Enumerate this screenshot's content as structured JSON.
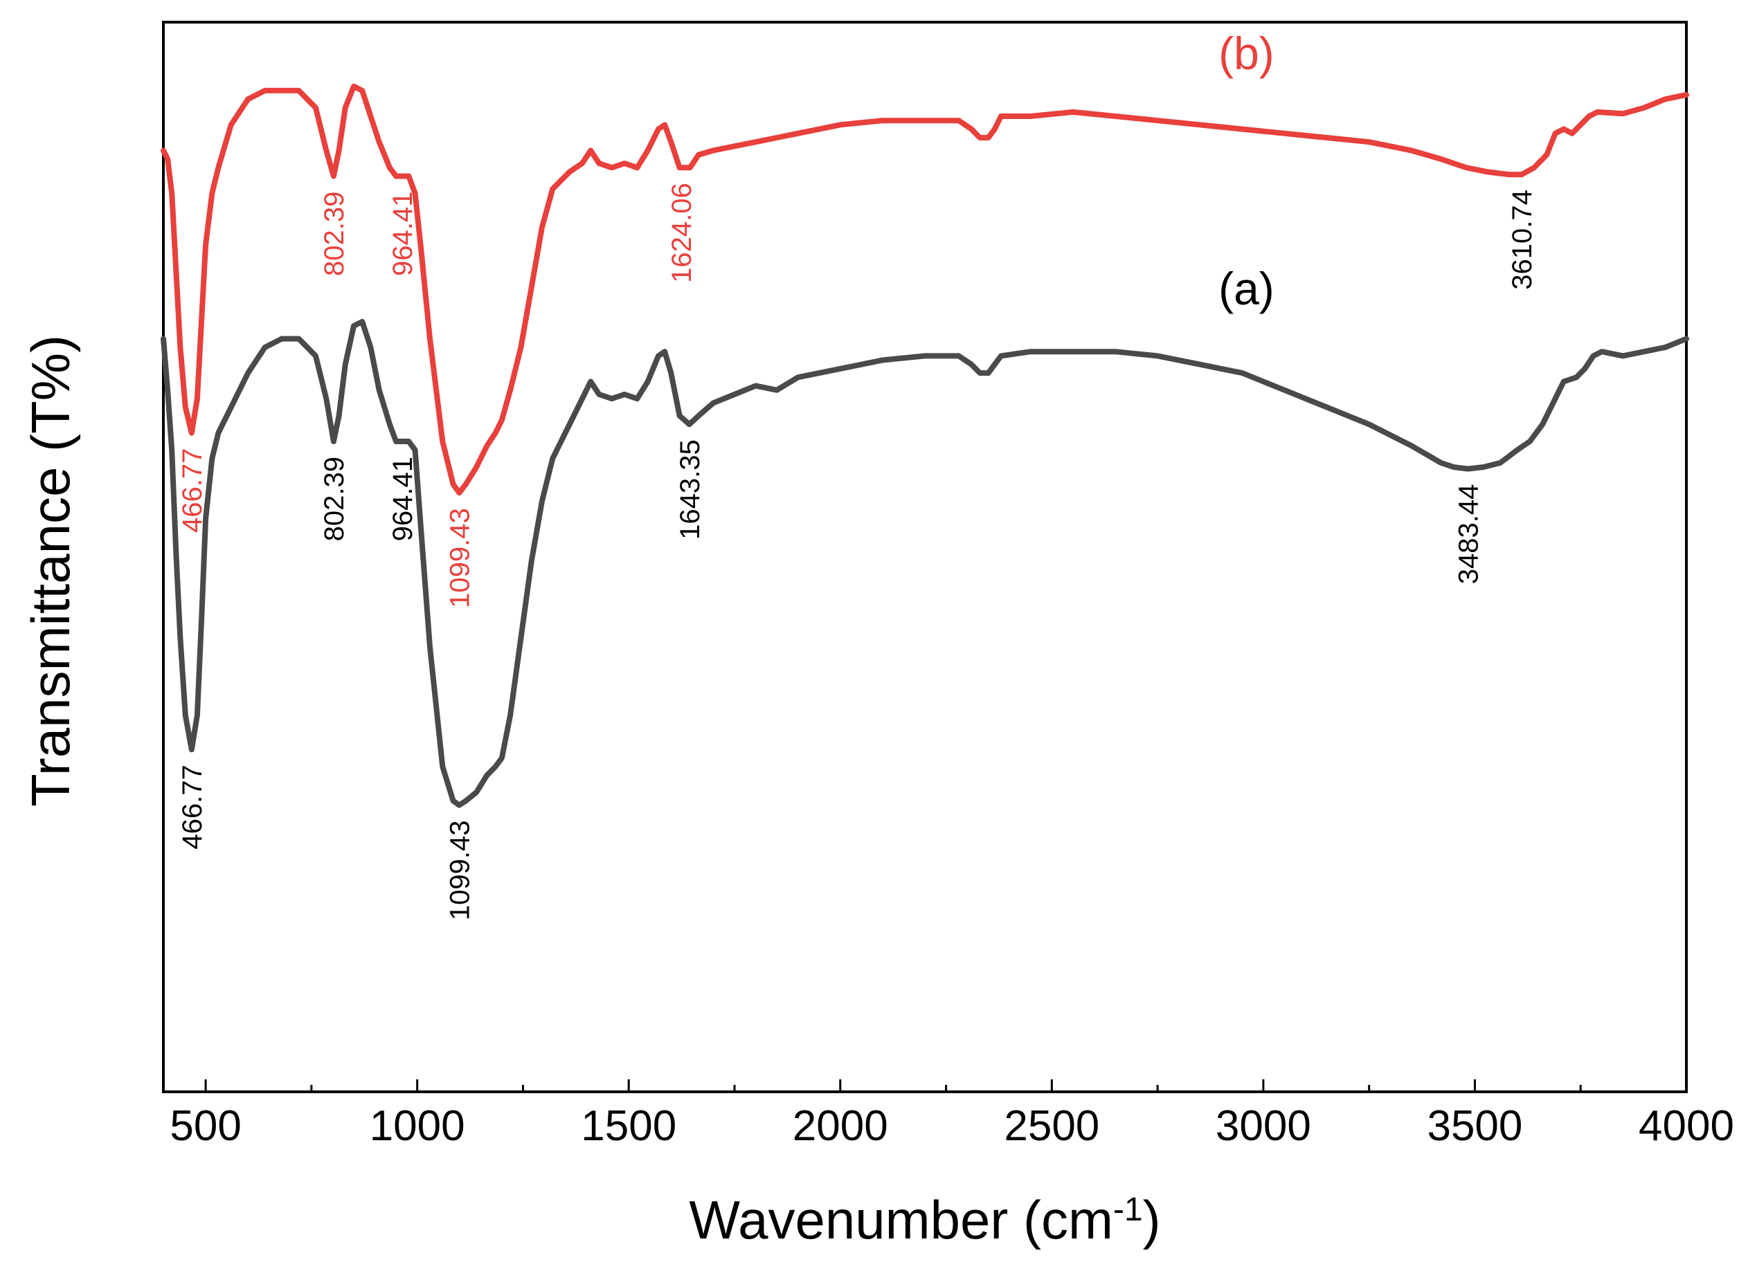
{
  "chart_data": {
    "type": "line",
    "title": "",
    "xlabel": "Wavenumber (cm",
    "xlabel_superscript": "-1",
    "xlabel_close": ")",
    "ylabel": "Transmittance (T%)",
    "xlim": [
      400,
      4000
    ],
    "ylim": [
      -20,
      105
    ],
    "grid": false,
    "y_ticks_labeled": false,
    "x_ticks": [
      500,
      1000,
      1500,
      2000,
      2500,
      3000,
      3500,
      4000
    ],
    "x_tick_labels": [
      "500",
      "1000",
      "1500",
      "2000",
      "2500",
      "3000",
      "3500",
      "4000"
    ],
    "series": [
      {
        "name": "(a)",
        "color": "#4a4a4a",
        "points": [
          [
            400,
            68
          ],
          [
            410,
            62
          ],
          [
            420,
            55
          ],
          [
            430,
            43
          ],
          [
            440,
            33
          ],
          [
            452,
            24
          ],
          [
            466.77,
            20
          ],
          [
            480,
            24
          ],
          [
            490,
            35
          ],
          [
            500,
            47
          ],
          [
            515,
            54
          ],
          [
            530,
            57
          ],
          [
            560,
            60
          ],
          [
            600,
            64
          ],
          [
            640,
            67
          ],
          [
            680,
            68
          ],
          [
            720,
            68
          ],
          [
            760,
            66
          ],
          [
            785,
            61
          ],
          [
            802.39,
            56
          ],
          [
            815,
            59
          ],
          [
            830,
            65
          ],
          [
            850,
            69.5
          ],
          [
            870,
            70
          ],
          [
            890,
            67
          ],
          [
            910,
            62
          ],
          [
            935,
            58
          ],
          [
            950,
            56
          ],
          [
            964.41,
            56
          ],
          [
            980,
            56
          ],
          [
            995,
            55
          ],
          [
            1010,
            45
          ],
          [
            1030,
            32
          ],
          [
            1060,
            18
          ],
          [
            1085,
            14
          ],
          [
            1099.43,
            13.5
          ],
          [
            1115,
            14
          ],
          [
            1140,
            15
          ],
          [
            1165,
            17
          ],
          [
            1185,
            18
          ],
          [
            1200,
            19
          ],
          [
            1220,
            24
          ],
          [
            1245,
            33
          ],
          [
            1270,
            42
          ],
          [
            1295,
            49
          ],
          [
            1320,
            54
          ],
          [
            1360,
            58
          ],
          [
            1390,
            61
          ],
          [
            1410,
            63
          ],
          [
            1430,
            61.5
          ],
          [
            1460,
            61
          ],
          [
            1490,
            61.5
          ],
          [
            1520,
            61
          ],
          [
            1545,
            63
          ],
          [
            1570,
            66
          ],
          [
            1585,
            66.5
          ],
          [
            1600,
            64
          ],
          [
            1620,
            59
          ],
          [
            1643.35,
            58
          ],
          [
            1665,
            59
          ],
          [
            1700,
            60.5
          ],
          [
            1750,
            61.5
          ],
          [
            1800,
            62.5
          ],
          [
            1850,
            62
          ],
          [
            1900,
            63.5
          ],
          [
            2000,
            64.5
          ],
          [
            2100,
            65.5
          ],
          [
            2200,
            66
          ],
          [
            2280,
            66
          ],
          [
            2310,
            65
          ],
          [
            2330,
            64
          ],
          [
            2350,
            64
          ],
          [
            2365,
            65
          ],
          [
            2380,
            66
          ],
          [
            2450,
            66.5
          ],
          [
            2550,
            66.5
          ],
          [
            2650,
            66.5
          ],
          [
            2750,
            66
          ],
          [
            2850,
            65
          ],
          [
            2950,
            64
          ],
          [
            3050,
            62
          ],
          [
            3150,
            60
          ],
          [
            3250,
            58
          ],
          [
            3350,
            55.5
          ],
          [
            3420,
            53.5
          ],
          [
            3450,
            53
          ],
          [
            3483.44,
            52.8
          ],
          [
            3520,
            53
          ],
          [
            3560,
            53.5
          ],
          [
            3600,
            55
          ],
          [
            3630,
            56
          ],
          [
            3660,
            58
          ],
          [
            3690,
            61
          ],
          [
            3710,
            63
          ],
          [
            3740,
            63.5
          ],
          [
            3760,
            64.5
          ],
          [
            3780,
            66
          ],
          [
            3800,
            66.5
          ],
          [
            3850,
            66
          ],
          [
            3900,
            66.5
          ],
          [
            3950,
            67
          ],
          [
            4000,
            68
          ]
        ]
      },
      {
        "name": "(b)",
        "color": "#e8403c",
        "points": [
          [
            400,
            90
          ],
          [
            410,
            89
          ],
          [
            420,
            85
          ],
          [
            430,
            76
          ],
          [
            440,
            67
          ],
          [
            452,
            60
          ],
          [
            466.77,
            57
          ],
          [
            480,
            61
          ],
          [
            490,
            70
          ],
          [
            500,
            79
          ],
          [
            515,
            85
          ],
          [
            530,
            88
          ],
          [
            560,
            93
          ],
          [
            600,
            96
          ],
          [
            640,
            97
          ],
          [
            680,
            97
          ],
          [
            720,
            97
          ],
          [
            760,
            95
          ],
          [
            785,
            90
          ],
          [
            802.39,
            87
          ],
          [
            815,
            90
          ],
          [
            830,
            95
          ],
          [
            850,
            97.5
          ],
          [
            870,
            97
          ],
          [
            890,
            94
          ],
          [
            910,
            91
          ],
          [
            935,
            88
          ],
          [
            950,
            87
          ],
          [
            964.41,
            87
          ],
          [
            980,
            87
          ],
          [
            995,
            85
          ],
          [
            1010,
            78
          ],
          [
            1030,
            68
          ],
          [
            1060,
            56
          ],
          [
            1085,
            51
          ],
          [
            1099.43,
            50
          ],
          [
            1115,
            51
          ],
          [
            1140,
            53
          ],
          [
            1165,
            55.5
          ],
          [
            1185,
            57
          ],
          [
            1200,
            58.5
          ],
          [
            1220,
            62
          ],
          [
            1245,
            67
          ],
          [
            1270,
            74
          ],
          [
            1295,
            81
          ],
          [
            1320,
            85.5
          ],
          [
            1360,
            87.5
          ],
          [
            1390,
            88.5
          ],
          [
            1410,
            90
          ],
          [
            1430,
            88.5
          ],
          [
            1460,
            88
          ],
          [
            1490,
            88.5
          ],
          [
            1520,
            88
          ],
          [
            1545,
            90
          ],
          [
            1570,
            92.5
          ],
          [
            1585,
            93
          ],
          [
            1600,
            91
          ],
          [
            1620,
            88
          ],
          [
            1624.06,
            88
          ],
          [
            1645,
            88
          ],
          [
            1665,
            89.5
          ],
          [
            1700,
            90
          ],
          [
            1750,
            90.5
          ],
          [
            1800,
            91
          ],
          [
            1850,
            91.5
          ],
          [
            1900,
            92
          ],
          [
            2000,
            93
          ],
          [
            2100,
            93.5
          ],
          [
            2200,
            93.5
          ],
          [
            2280,
            93.5
          ],
          [
            2310,
            92.5
          ],
          [
            2330,
            91.5
          ],
          [
            2350,
            91.5
          ],
          [
            2365,
            92.5
          ],
          [
            2380,
            94
          ],
          [
            2450,
            94
          ],
          [
            2550,
            94.5
          ],
          [
            2650,
            94
          ],
          [
            2750,
            93.5
          ],
          [
            2850,
            93
          ],
          [
            2950,
            92.5
          ],
          [
            3050,
            92
          ],
          [
            3150,
            91.5
          ],
          [
            3250,
            91
          ],
          [
            3350,
            90
          ],
          [
            3420,
            89
          ],
          [
            3480,
            88
          ],
          [
            3530,
            87.5
          ],
          [
            3580,
            87.2
          ],
          [
            3610.74,
            87.2
          ],
          [
            3640,
            88
          ],
          [
            3670,
            89.5
          ],
          [
            3690,
            92
          ],
          [
            3710,
            92.5
          ],
          [
            3730,
            92
          ],
          [
            3750,
            93
          ],
          [
            3770,
            94
          ],
          [
            3790,
            94.5
          ],
          [
            3850,
            94.3
          ],
          [
            3900,
            95
          ],
          [
            3950,
            96
          ],
          [
            4000,
            96.5
          ]
        ]
      }
    ],
    "series_labels": [
      {
        "text": "(a)",
        "x": 2960,
        "y": 72,
        "color": "#000000"
      },
      {
        "text": "(b)",
        "x": 2960,
        "y": 99.5,
        "color": "#e8403c"
      }
    ],
    "annotations": [
      {
        "text": "466.77",
        "x": 466.77,
        "y": 57,
        "color": "#e8403c",
        "series": "(b)"
      },
      {
        "text": "802.39",
        "x": 802.39,
        "y": 87,
        "color": "#e8403c",
        "series": "(b)"
      },
      {
        "text": "964.41",
        "x": 964.41,
        "y": 87,
        "color": "#e8403c",
        "series": "(b)"
      },
      {
        "text": "1099.43",
        "x": 1099.43,
        "y": 50,
        "color": "#e8403c",
        "series": "(b)"
      },
      {
        "text": "1624.06",
        "x": 1624.06,
        "y": 88,
        "color": "#e8403c",
        "series": "(b)"
      },
      {
        "text": "3610.74",
        "x": 3610.74,
        "y": 87.2,
        "color": "#000000",
        "series": "(b)"
      },
      {
        "text": "466.77",
        "x": 466.77,
        "y": 20,
        "color": "#000000",
        "series": "(a)"
      },
      {
        "text": "802.39",
        "x": 802.39,
        "y": 56,
        "color": "#000000",
        "series": "(a)"
      },
      {
        "text": "964.41",
        "x": 964.41,
        "y": 56,
        "color": "#000000",
        "series": "(a)"
      },
      {
        "text": "1099.43",
        "x": 1099.43,
        "y": 13.5,
        "color": "#000000",
        "series": "(a)"
      },
      {
        "text": "1643.35",
        "x": 1643.35,
        "y": 58,
        "color": "#000000",
        "series": "(a)"
      },
      {
        "text": "3483.44",
        "x": 3483.44,
        "y": 52.8,
        "color": "#000000",
        "series": "(a)"
      }
    ]
  }
}
